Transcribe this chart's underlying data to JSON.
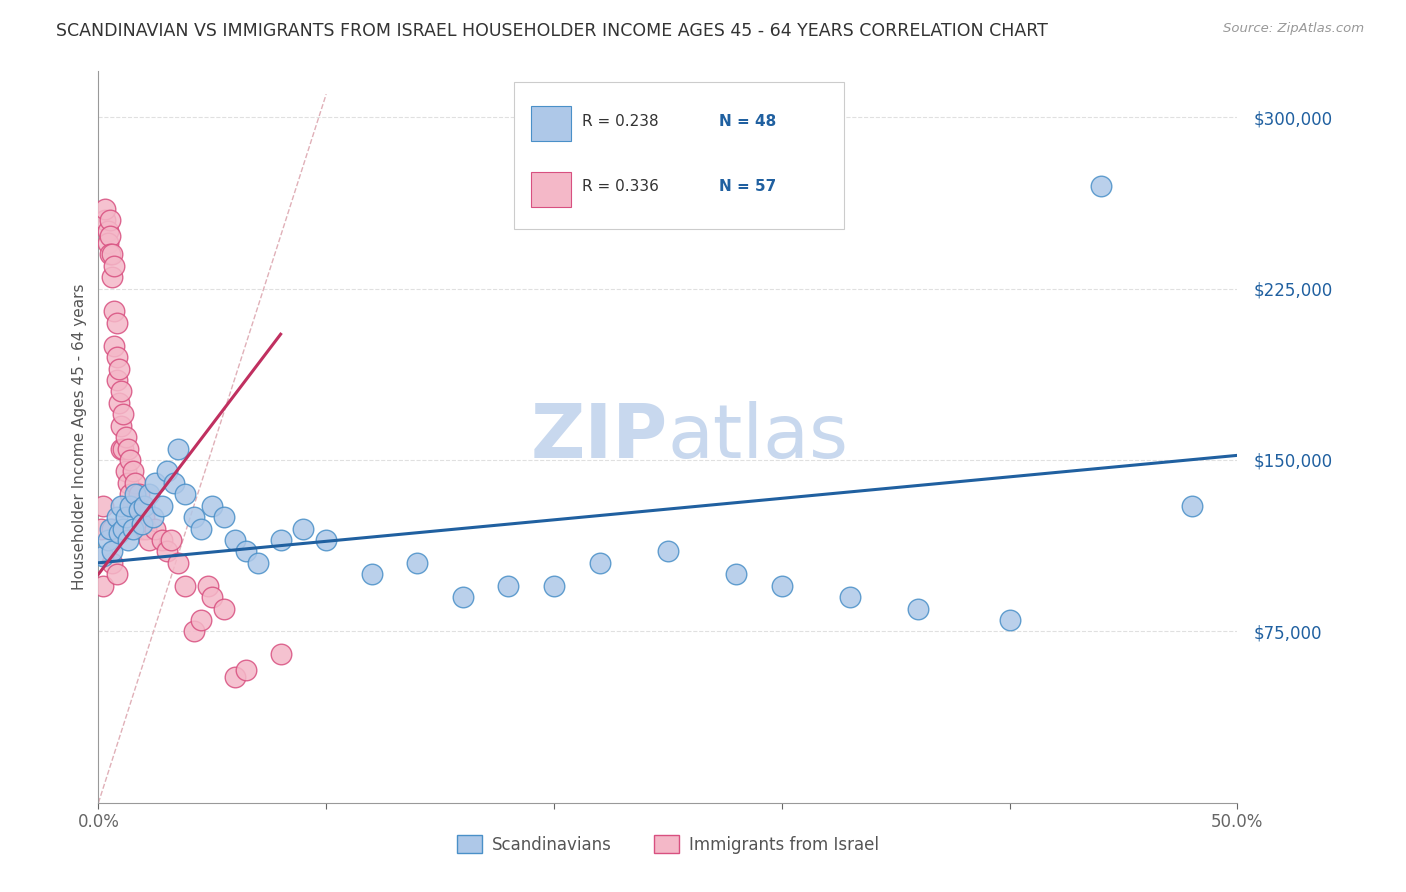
{
  "title": "SCANDINAVIAN VS IMMIGRANTS FROM ISRAEL HOUSEHOLDER INCOME AGES 45 - 64 YEARS CORRELATION CHART",
  "source": "Source: ZipAtlas.com",
  "ylabel": "Householder Income Ages 45 - 64 years",
  "ytick_values": [
    75000,
    150000,
    225000,
    300000
  ],
  "xlim": [
    0.0,
    0.5
  ],
  "ylim": [
    0,
    320000
  ],
  "legend_r_blue": "R = 0.238",
  "legend_n_blue": "N = 48",
  "legend_r_pink": "R = 0.336",
  "legend_n_pink": "N = 57",
  "legend_label_blue": "Scandinavians",
  "legend_label_pink": "Immigrants from Israel",
  "scatter_blue_x": [
    0.002,
    0.004,
    0.005,
    0.006,
    0.008,
    0.009,
    0.01,
    0.011,
    0.012,
    0.013,
    0.014,
    0.015,
    0.016,
    0.018,
    0.019,
    0.02,
    0.022,
    0.024,
    0.025,
    0.028,
    0.03,
    0.033,
    0.035,
    0.038,
    0.042,
    0.045,
    0.05,
    0.055,
    0.06,
    0.065,
    0.07,
    0.08,
    0.09,
    0.1,
    0.12,
    0.14,
    0.16,
    0.18,
    0.2,
    0.22,
    0.25,
    0.28,
    0.3,
    0.33,
    0.36,
    0.4,
    0.44,
    0.48
  ],
  "scatter_blue_y": [
    108000,
    115000,
    120000,
    110000,
    125000,
    118000,
    130000,
    120000,
    125000,
    115000,
    130000,
    120000,
    135000,
    128000,
    122000,
    130000,
    135000,
    125000,
    140000,
    130000,
    145000,
    140000,
    155000,
    135000,
    125000,
    120000,
    130000,
    125000,
    115000,
    110000,
    105000,
    115000,
    120000,
    115000,
    100000,
    105000,
    90000,
    95000,
    95000,
    105000,
    110000,
    100000,
    95000,
    90000,
    85000,
    80000,
    270000,
    130000
  ],
  "scatter_pink_x": [
    0.001,
    0.002,
    0.002,
    0.003,
    0.003,
    0.004,
    0.004,
    0.005,
    0.005,
    0.005,
    0.006,
    0.006,
    0.006,
    0.006,
    0.007,
    0.007,
    0.007,
    0.008,
    0.008,
    0.008,
    0.008,
    0.009,
    0.009,
    0.01,
    0.01,
    0.01,
    0.011,
    0.011,
    0.012,
    0.012,
    0.013,
    0.013,
    0.014,
    0.014,
    0.015,
    0.015,
    0.016,
    0.017,
    0.018,
    0.019,
    0.02,
    0.021,
    0.022,
    0.025,
    0.028,
    0.03,
    0.032,
    0.035,
    0.038,
    0.042,
    0.045,
    0.048,
    0.05,
    0.055,
    0.06,
    0.065,
    0.08
  ],
  "scatter_pink_y": [
    120000,
    130000,
    95000,
    255000,
    260000,
    250000,
    245000,
    255000,
    248000,
    240000,
    240000,
    230000,
    120000,
    105000,
    235000,
    215000,
    200000,
    210000,
    195000,
    185000,
    100000,
    190000,
    175000,
    180000,
    165000,
    155000,
    170000,
    155000,
    160000,
    145000,
    155000,
    140000,
    150000,
    135000,
    145000,
    130000,
    140000,
    130000,
    135000,
    120000,
    125000,
    120000,
    115000,
    120000,
    115000,
    110000,
    115000,
    105000,
    95000,
    75000,
    80000,
    95000,
    90000,
    85000,
    55000,
    58000,
    65000
  ],
  "color_blue": "#aec8e8",
  "color_pink": "#f4b8c8",
  "edge_blue": "#4a90c8",
  "edge_pink": "#d85080",
  "line_blue": "#2060a0",
  "line_pink": "#c03060",
  "line_diagonal_color": "#e0b0b8",
  "watermark_zip": "ZIP",
  "watermark_atlas": "atlas",
  "watermark_color": "#c8d8ee",
  "background_color": "#ffffff",
  "grid_color": "#e0e0e0",
  "ytick_color": "#2060a0",
  "title_color": "#333333",
  "axis_color": "#999999"
}
